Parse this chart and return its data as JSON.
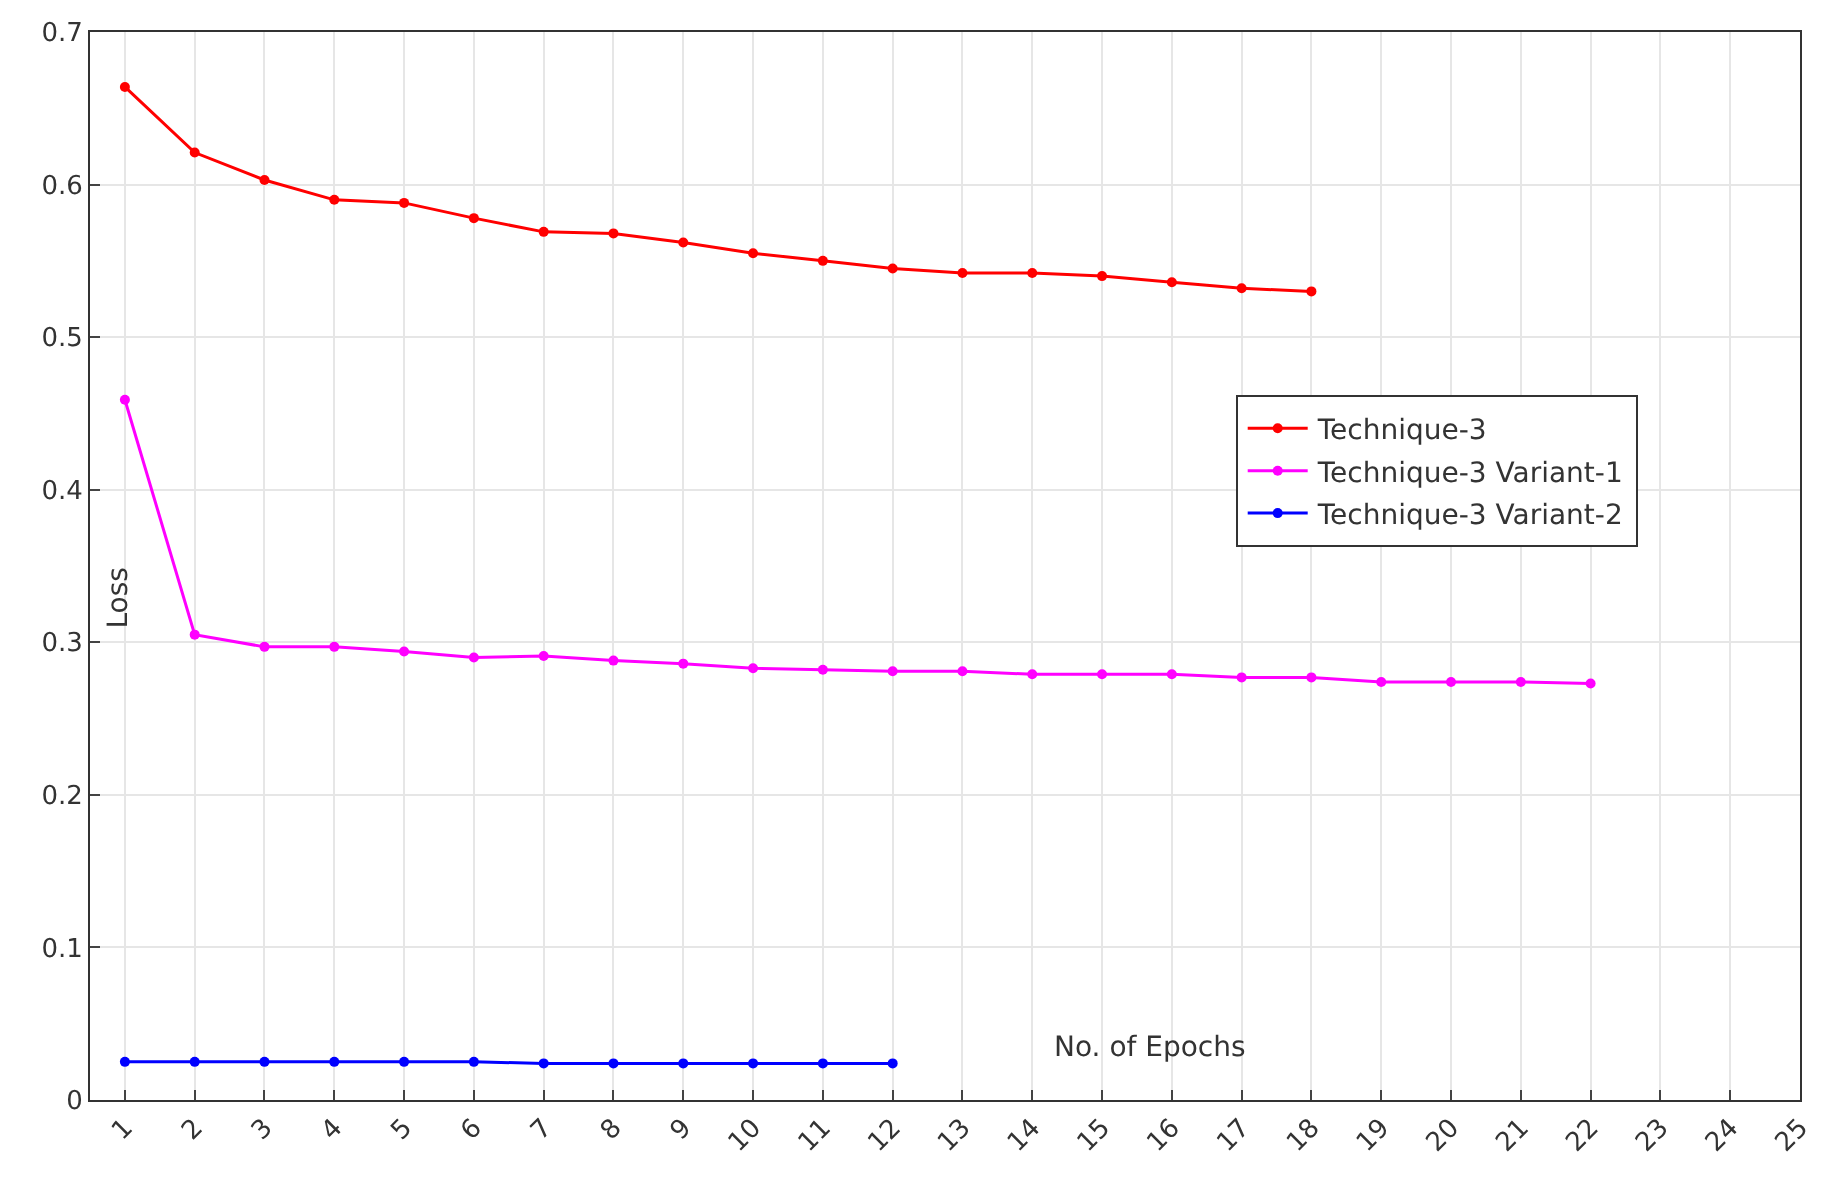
{
  "chart_data": {
    "type": "line",
    "xlabel": "No. of Epochs",
    "ylabel": "Loss",
    "xlim": [
      0.5,
      25
    ],
    "xticks": [
      1,
      2,
      3,
      4,
      5,
      6,
      7,
      8,
      9,
      10,
      11,
      12,
      13,
      14,
      15,
      16,
      17,
      18,
      19,
      20,
      21,
      22,
      23,
      24,
      25
    ],
    "ylim": [
      0,
      0.7
    ],
    "yticks": [
      0,
      0.1,
      0.2,
      0.3,
      0.4,
      0.5,
      0.6,
      0.7
    ],
    "grid": true,
    "legend": "right",
    "marker": "circle",
    "line_style": "solid",
    "series": [
      {
        "name": "Technique-3",
        "color": "#ff0000",
        "x": [
          1,
          2,
          3,
          4,
          5,
          6,
          7,
          8,
          9,
          10,
          11,
          12,
          13,
          14,
          15,
          16,
          17,
          18
        ],
        "values": [
          0.664,
          0.621,
          0.603,
          0.59,
          0.588,
          0.578,
          0.569,
          0.568,
          0.562,
          0.555,
          0.55,
          0.545,
          0.542,
          0.542,
          0.54,
          0.536,
          0.532,
          0.53
        ]
      },
      {
        "name": "Technique-3 Variant-1",
        "color": "#ff00ff",
        "x": [
          1,
          2,
          3,
          4,
          5,
          6,
          7,
          8,
          9,
          10,
          11,
          12,
          13,
          14,
          15,
          16,
          17,
          18,
          19,
          20,
          21,
          22
        ],
        "values": [
          0.459,
          0.305,
          0.297,
          0.297,
          0.294,
          0.29,
          0.291,
          0.288,
          0.286,
          0.283,
          0.282,
          0.281,
          0.281,
          0.279,
          0.279,
          0.279,
          0.277,
          0.277,
          0.274,
          0.274,
          0.274,
          0.273
        ]
      },
      {
        "name": "Technique-3 Variant-2",
        "color": "#0000ff",
        "x": [
          1,
          2,
          3,
          4,
          5,
          6,
          7,
          8,
          9,
          10,
          11,
          12
        ],
        "values": [
          0.025,
          0.025,
          0.025,
          0.025,
          0.025,
          0.025,
          0.024,
          0.024,
          0.024,
          0.024,
          0.024,
          0.024
        ]
      }
    ]
  }
}
